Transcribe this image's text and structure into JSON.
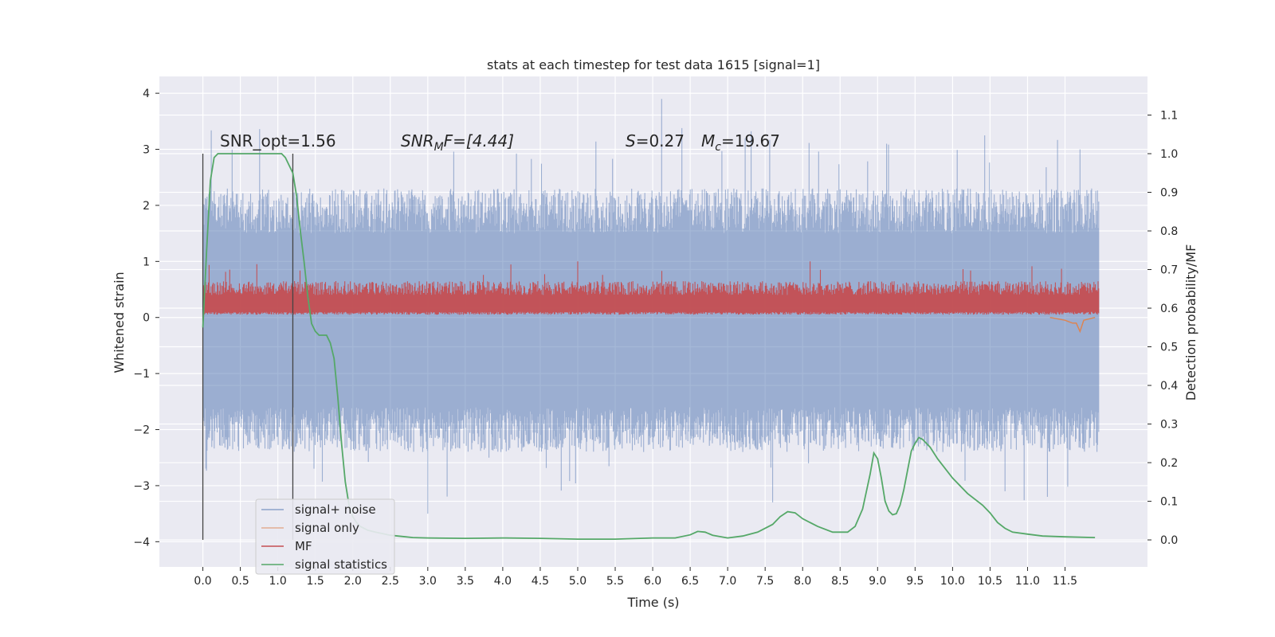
{
  "chart_data": {
    "type": "line",
    "title": "stats at each timestep for test data 1615 [signal=1]",
    "xlabel": "Time (s)",
    "ylabel": "Whitened strain",
    "y2label": "Detection probability/MF",
    "xlim": [
      -0.58,
      12.6
    ],
    "ylim": [
      -4.45,
      4.3
    ],
    "y2lim": [
      -0.07,
      1.2
    ],
    "x_ticks": [
      "0.0",
      "0.5",
      "1.0",
      "1.5",
      "2.0",
      "2.5",
      "3.0",
      "3.5",
      "4.0",
      "4.5",
      "5.0",
      "5.5",
      "6.0",
      "6.5",
      "7.0",
      "7.5",
      "8.0",
      "8.5",
      "9.0",
      "9.5",
      "10.0",
      "10.5",
      "11.0",
      "11.5"
    ],
    "y_ticks": [
      "4",
      "3",
      "2",
      "1",
      "0",
      "−1",
      "−2",
      "−3",
      "−4"
    ],
    "y2_ticks": [
      "1.1",
      "1.0",
      "0.9",
      "0.8",
      "0.7",
      "0.6",
      "0.5",
      "0.4",
      "0.3",
      "0.2",
      "0.1",
      "0.0"
    ],
    "grid": true,
    "legend_position": "lower-left",
    "annotations": {
      "snr_opt": "SNR_opt=1.56",
      "snr_mf_base": "SNR",
      "snr_mf_sub": "M",
      "snr_mf_rest": "F=[4.44]",
      "s_label": "S",
      "s_rest": "=0.27",
      "mc_base": "M",
      "mc_sub": "c",
      "mc_rest": "=19.67"
    },
    "vlines": [
      0.0,
      1.2
    ],
    "series": [
      {
        "name": "signal+ noise",
        "color": "#4c72b0",
        "axis": "left",
        "style": "noise band",
        "x_range": [
          0.0,
          11.95
        ],
        "envelope_pos": [
          1.5,
          2.3
        ],
        "envelope_neg": [
          -1.6,
          -2.4
        ],
        "peak": 3.9,
        "trough": -3.5
      },
      {
        "name": "signal only",
        "color": "#dd8452",
        "axis": "left",
        "x": [
          11.3,
          11.5,
          11.6,
          11.65,
          11.7,
          11.75,
          11.9
        ],
        "y": [
          0.0,
          -0.05,
          -0.1,
          -0.1,
          -0.25,
          -0.05,
          0.0
        ]
      },
      {
        "name": "MF",
        "color": "#c44e52",
        "axis": "left",
        "style": "noise band",
        "x_range": [
          0.0,
          11.95
        ],
        "baseline": 0.05,
        "peak_typical": 0.65,
        "peak": 1.0
      },
      {
        "name": "signal statistics",
        "color": "#55a868",
        "axis": "right",
        "x": [
          0.0,
          0.05,
          0.1,
          0.15,
          0.2,
          0.3,
          0.5,
          0.8,
          1.0,
          1.05,
          1.1,
          1.15,
          1.2,
          1.25,
          1.3,
          1.35,
          1.4,
          1.45,
          1.5,
          1.55,
          1.6,
          1.65,
          1.7,
          1.75,
          1.8,
          1.85,
          1.9,
          1.95,
          2.0,
          2.05,
          2.1,
          2.2,
          2.3,
          2.5,
          2.8,
          3.0,
          3.5,
          4.0,
          4.5,
          5.0,
          5.5,
          6.0,
          6.3,
          6.5,
          6.6,
          6.7,
          6.8,
          7.0,
          7.2,
          7.4,
          7.6,
          7.7,
          7.8,
          7.9,
          8.0,
          8.2,
          8.4,
          8.6,
          8.7,
          8.8,
          8.9,
          8.95,
          9.0,
          9.05,
          9.1,
          9.15,
          9.2,
          9.25,
          9.3,
          9.35,
          9.4,
          9.45,
          9.5,
          9.55,
          9.6,
          9.65,
          9.7,
          9.8,
          10.0,
          10.2,
          10.4,
          10.5,
          10.6,
          10.7,
          10.8,
          11.0,
          11.2,
          11.5,
          11.9
        ],
        "y": [
          0.55,
          0.75,
          0.93,
          0.99,
          1.0,
          1.0,
          1.0,
          1.0,
          1.0,
          1.0,
          0.99,
          0.97,
          0.95,
          0.89,
          0.8,
          0.72,
          0.63,
          0.56,
          0.54,
          0.53,
          0.53,
          0.53,
          0.51,
          0.47,
          0.37,
          0.25,
          0.15,
          0.09,
          0.06,
          0.045,
          0.035,
          0.025,
          0.02,
          0.012,
          0.006,
          0.005,
          0.004,
          0.005,
          0.004,
          0.002,
          0.002,
          0.005,
          0.005,
          0.013,
          0.022,
          0.02,
          0.012,
          0.005,
          0.01,
          0.02,
          0.04,
          0.06,
          0.073,
          0.07,
          0.055,
          0.035,
          0.02,
          0.02,
          0.035,
          0.08,
          0.17,
          0.225,
          0.21,
          0.16,
          0.1,
          0.075,
          0.065,
          0.068,
          0.09,
          0.13,
          0.18,
          0.23,
          0.25,
          0.265,
          0.26,
          0.25,
          0.24,
          0.21,
          0.16,
          0.12,
          0.09,
          0.07,
          0.045,
          0.03,
          0.02,
          0.015,
          0.01,
          0.008,
          0.006
        ]
      }
    ]
  }
}
